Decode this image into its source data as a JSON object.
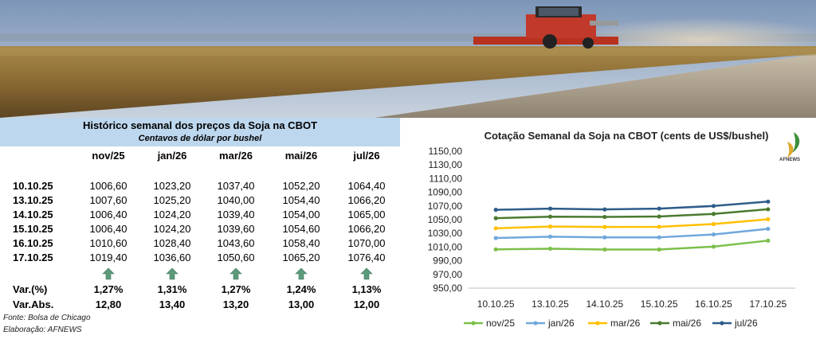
{
  "table": {
    "title": "Histórico semanal dos preços da Soja na CBOT",
    "subtitle": "Centavos de dólar por bushel",
    "columns": [
      "nov/25",
      "jan/26",
      "mar/26",
      "mai/26",
      "jul/26"
    ],
    "rows": [
      {
        "date": "10.10.25",
        "values": [
          "1006,60",
          "1023,20",
          "1037,40",
          "1052,20",
          "1064,40"
        ]
      },
      {
        "date": "13.10.25",
        "values": [
          "1007,60",
          "1025,20",
          "1040,00",
          "1054,40",
          "1066,20"
        ]
      },
      {
        "date": "14.10.25",
        "values": [
          "1006,40",
          "1024,20",
          "1039,40",
          "1054,00",
          "1065,00"
        ]
      },
      {
        "date": "15.10.25",
        "values": [
          "1006,40",
          "1024,20",
          "1039,60",
          "1054,60",
          "1066,20"
        ]
      },
      {
        "date": "16.10.25",
        "values": [
          "1010,60",
          "1028,40",
          "1043,60",
          "1058,40",
          "1070,00"
        ]
      },
      {
        "date": "17.10.25",
        "values": [
          "1019,40",
          "1036,60",
          "1050,60",
          "1065,20",
          "1076,40"
        ]
      }
    ],
    "var_pct_label": "Var.(%)",
    "var_pct": [
      "1,27%",
      "1,31%",
      "1,27%",
      "1,24%",
      "1,13%"
    ],
    "var_abs_label": "Var.Abs.",
    "var_abs": [
      "12,80",
      "13,40",
      "13,20",
      "13,00",
      "12,00"
    ],
    "trend_icons": [
      "arrow-up-icon",
      "arrow-up-icon",
      "arrow-up-icon",
      "arrow-up-icon",
      "arrow-up-icon"
    ],
    "arrow_color": "#5b9a7a",
    "source": "Fonte: Bolsa de Chicago",
    "credit": "Elaboração: AFNEWS"
  },
  "logo": {
    "text": "AFNEWS"
  },
  "chart_data": {
    "type": "line",
    "title": "Cotação Semanal da Soja na CBOT (cents de US$/bushel)",
    "x": [
      "10.10.25",
      "13.10.25",
      "14.10.25",
      "15.10.25",
      "16.10.25",
      "17.10.25"
    ],
    "ylim": [
      950,
      1150
    ],
    "ystep": 20,
    "ytick_labels": [
      "950,00",
      "970,00",
      "990,00",
      "1010,00",
      "1030,00",
      "1050,00",
      "1070,00",
      "1090,00",
      "1110,00",
      "1130,00",
      "1150,00"
    ],
    "grid": false,
    "legend": "bottom",
    "series": [
      {
        "name": "nov/25",
        "color": "#7cbf4a",
        "values": [
          1006.6,
          1007.6,
          1006.4,
          1006.4,
          1010.6,
          1019.4
        ]
      },
      {
        "name": "jan/26",
        "color": "#6fa8dc",
        "values": [
          1023.2,
          1025.2,
          1024.2,
          1024.2,
          1028.4,
          1036.6
        ]
      },
      {
        "name": "mar/26",
        "color": "#ffc000",
        "values": [
          1037.4,
          1040.0,
          1039.4,
          1039.6,
          1043.6,
          1050.6
        ]
      },
      {
        "name": "mai/26",
        "color": "#4a7a30",
        "values": [
          1052.2,
          1054.4,
          1054.0,
          1054.6,
          1058.4,
          1065.2
        ]
      },
      {
        "name": "jul/26",
        "color": "#2e5c8a",
        "values": [
          1064.4,
          1066.2,
          1065.0,
          1066.2,
          1070.0,
          1076.4
        ]
      }
    ]
  }
}
